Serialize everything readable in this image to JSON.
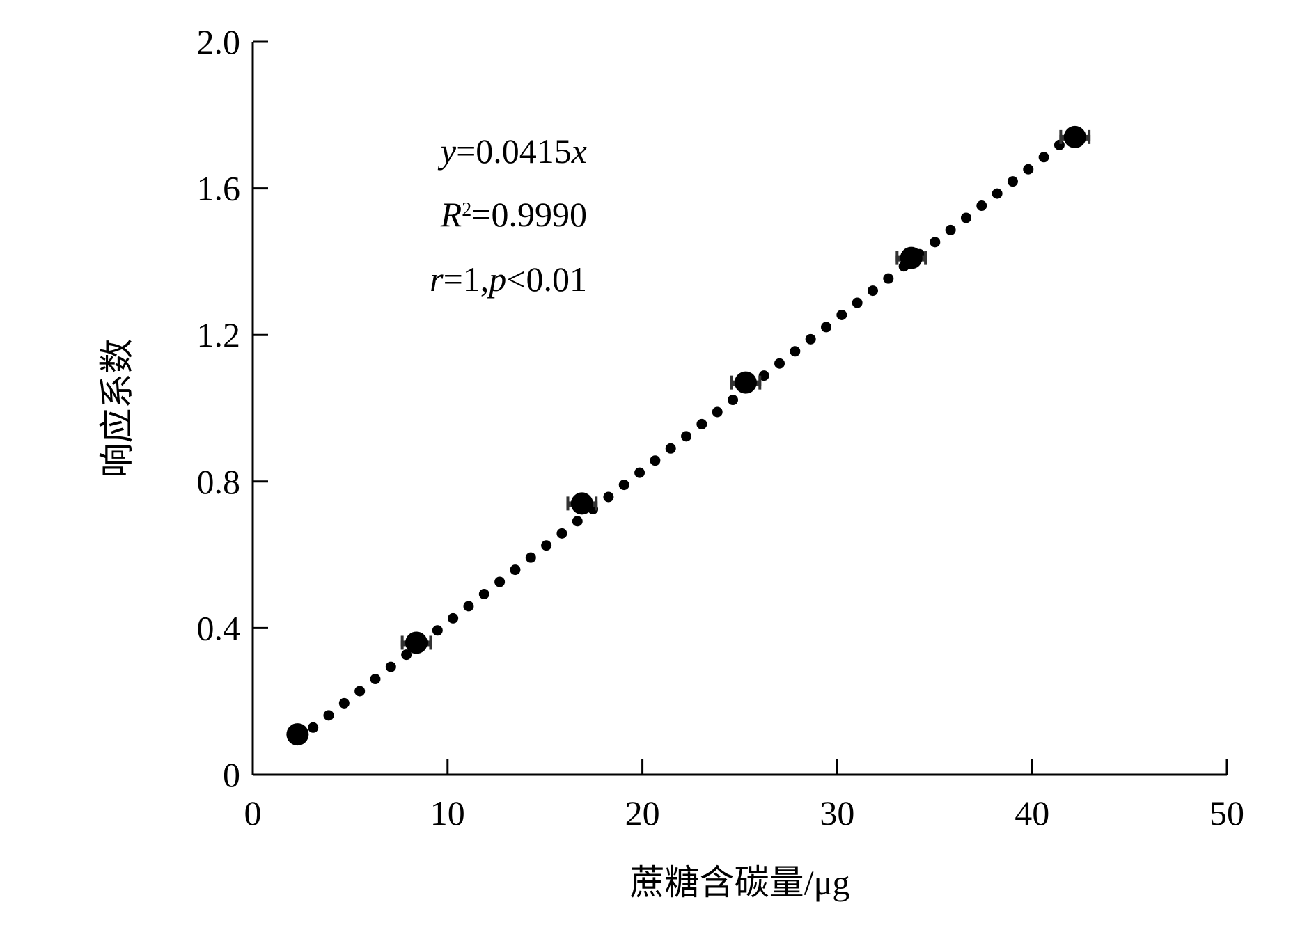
{
  "chart_data": {
    "type": "scatter",
    "xlabel": "蔗糖含碳量/μg",
    "ylabel": "响应系数",
    "xlim": [
      0,
      50
    ],
    "ylim": [
      0,
      2.0
    ],
    "x_ticks": [
      0,
      10,
      20,
      30,
      40,
      50
    ],
    "x_tick_labels": [
      "0",
      "10",
      "20",
      "30",
      "40",
      "50"
    ],
    "y_ticks": [
      0,
      0.4,
      0.8,
      1.2,
      1.6,
      2.0
    ],
    "y_tick_labels": [
      "0",
      "0.4",
      "0.8",
      "1.2",
      "1.6",
      "2.0"
    ],
    "grid": false,
    "series": [
      {
        "kind": "points-with-error",
        "x": [
          2.3,
          8.4,
          16.9,
          25.3,
          33.8,
          42.2
        ],
        "y": [
          0.11,
          0.36,
          0.74,
          1.07,
          1.41,
          1.74
        ],
        "x_error": [
          0,
          0.8,
          0.8,
          0.8,
          0.8,
          0.8
        ]
      },
      {
        "kind": "fit-line",
        "style": "dotted",
        "x": [
          2.3,
          42.2
        ],
        "y": [
          0.0955,
          1.7513
        ]
      }
    ],
    "annotations": [
      {
        "id": "equation",
        "parts": [
          {
            "t": "y",
            "italic": true
          },
          {
            "t": "=0.0415",
            "italic": false
          },
          {
            "t": "x",
            "italic": true
          }
        ]
      },
      {
        "id": "r-squared",
        "parts": [
          {
            "t": "R",
            "italic": true
          },
          {
            "t": "2",
            "sup": true
          },
          {
            "t": "=0.9990",
            "italic": false
          }
        ]
      },
      {
        "id": "correlation",
        "parts": [
          {
            "t": "r",
            "italic": true
          },
          {
            "t": "=1,",
            "italic": false
          },
          {
            "t": "p",
            "italic": true
          },
          {
            "t": "<0.01",
            "italic": false
          }
        ]
      }
    ]
  }
}
